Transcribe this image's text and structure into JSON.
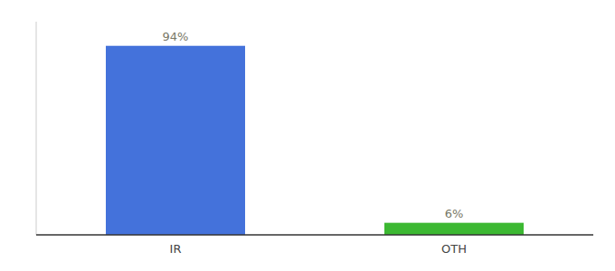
{
  "chart_data": {
    "type": "bar",
    "categories": [
      "IR",
      "OTH"
    ],
    "values": [
      94,
      6
    ],
    "value_labels": [
      "94%",
      "6%"
    ],
    "colors": [
      "#4472DB",
      "#3CB832"
    ],
    "ylim": [
      0,
      106
    ],
    "data_labels": true,
    "tick_labels": "x"
  }
}
